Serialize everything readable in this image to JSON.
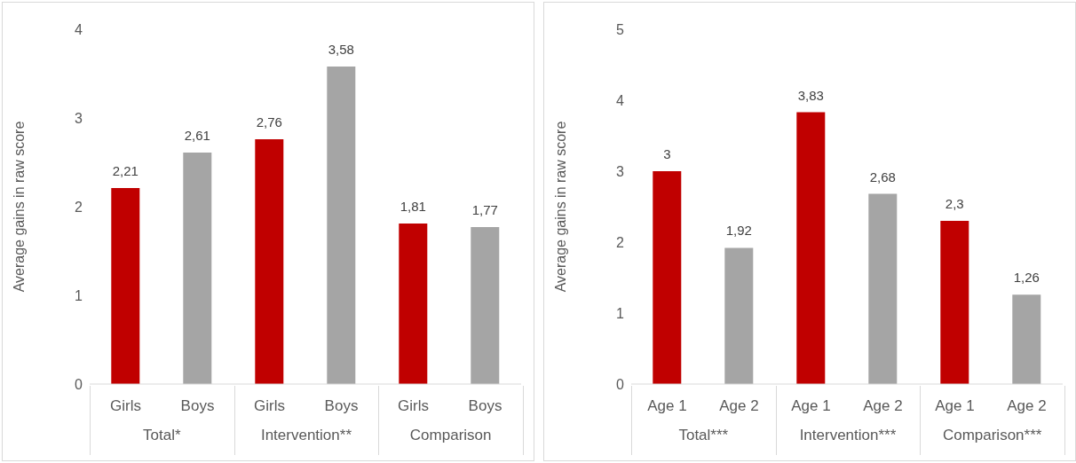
{
  "chart_data": [
    {
      "type": "bar",
      "ylabel": "Average gains in raw score",
      "categories": [
        "Girls",
        "Boys",
        "Girls",
        "Boys",
        "Girls",
        "Boys"
      ],
      "values": [
        2.21,
        2.61,
        2.76,
        3.58,
        1.81,
        1.77
      ],
      "value_labels": [
        "2,21",
        "2,61",
        "2,76",
        "3,58",
        "1,81",
        "1,77"
      ],
      "colors": [
        "#c00000",
        "#a5a5a5",
        "#c00000",
        "#a5a5a5",
        "#c00000",
        "#a5a5a5"
      ],
      "ylim": [
        0,
        4
      ],
      "yticks": [
        0,
        1,
        2,
        3,
        4
      ],
      "grid": false,
      "legend": false,
      "annotations": [
        "Total*",
        "Intervention**",
        "Comparison"
      ]
    },
    {
      "type": "bar",
      "ylabel": "Average gains in raw score",
      "categories": [
        "Age 1",
        "Age 2",
        "Age 1",
        "Age 2",
        "Age 1",
        "Age 2"
      ],
      "values": [
        3,
        1.92,
        3.83,
        2.68,
        2.3,
        1.26
      ],
      "value_labels": [
        "3",
        "1,92",
        "3,83",
        "2,68",
        "2,3",
        "1,26"
      ],
      "colors": [
        "#c00000",
        "#a5a5a5",
        "#c00000",
        "#a5a5a5",
        "#c00000",
        "#a5a5a5"
      ],
      "ylim": [
        0,
        5
      ],
      "yticks": [
        0,
        1,
        2,
        3,
        4,
        5
      ],
      "grid": false,
      "legend": false,
      "annotations": [
        "Total***",
        "Intervention***",
        "Comparison***"
      ]
    }
  ]
}
